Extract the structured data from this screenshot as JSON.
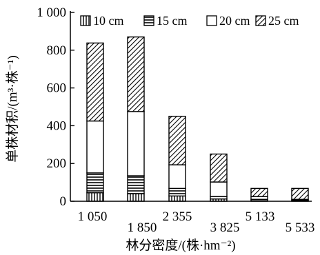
{
  "chart_data": {
    "type": "bar",
    "stacked": true,
    "title": "",
    "xlabel": "林分密度/(株·hm⁻²)",
    "ylabel": "单株材积/(m³·株⁻¹)",
    "categories": [
      "1 050",
      "1 850",
      "2 355",
      "3 825",
      "5 133",
      "5 533"
    ],
    "ylim": [
      0,
      1000
    ],
    "yticks": [
      0,
      200,
      400,
      600,
      800,
      1000
    ],
    "ytick_labels": [
      "0",
      "200",
      "400",
      "600",
      "800",
      "1 000"
    ],
    "grid": false,
    "legend_position": "top",
    "series": [
      {
        "name": "10 cm",
        "pattern": "vertical-lines",
        "values": [
          45,
          40,
          28,
          12,
          3,
          2
        ]
      },
      {
        "name": "15 cm",
        "pattern": "horizontal-lines",
        "values": [
          105,
          95,
          40,
          13,
          7,
          3
        ]
      },
      {
        "name": "20 cm",
        "pattern": "blank",
        "values": [
          275,
          340,
          125,
          77,
          15,
          5
        ]
      },
      {
        "name": "25 cm",
        "pattern": "diagonal-lines",
        "values": [
          413,
          395,
          257,
          148,
          43,
          58
        ]
      }
    ]
  }
}
